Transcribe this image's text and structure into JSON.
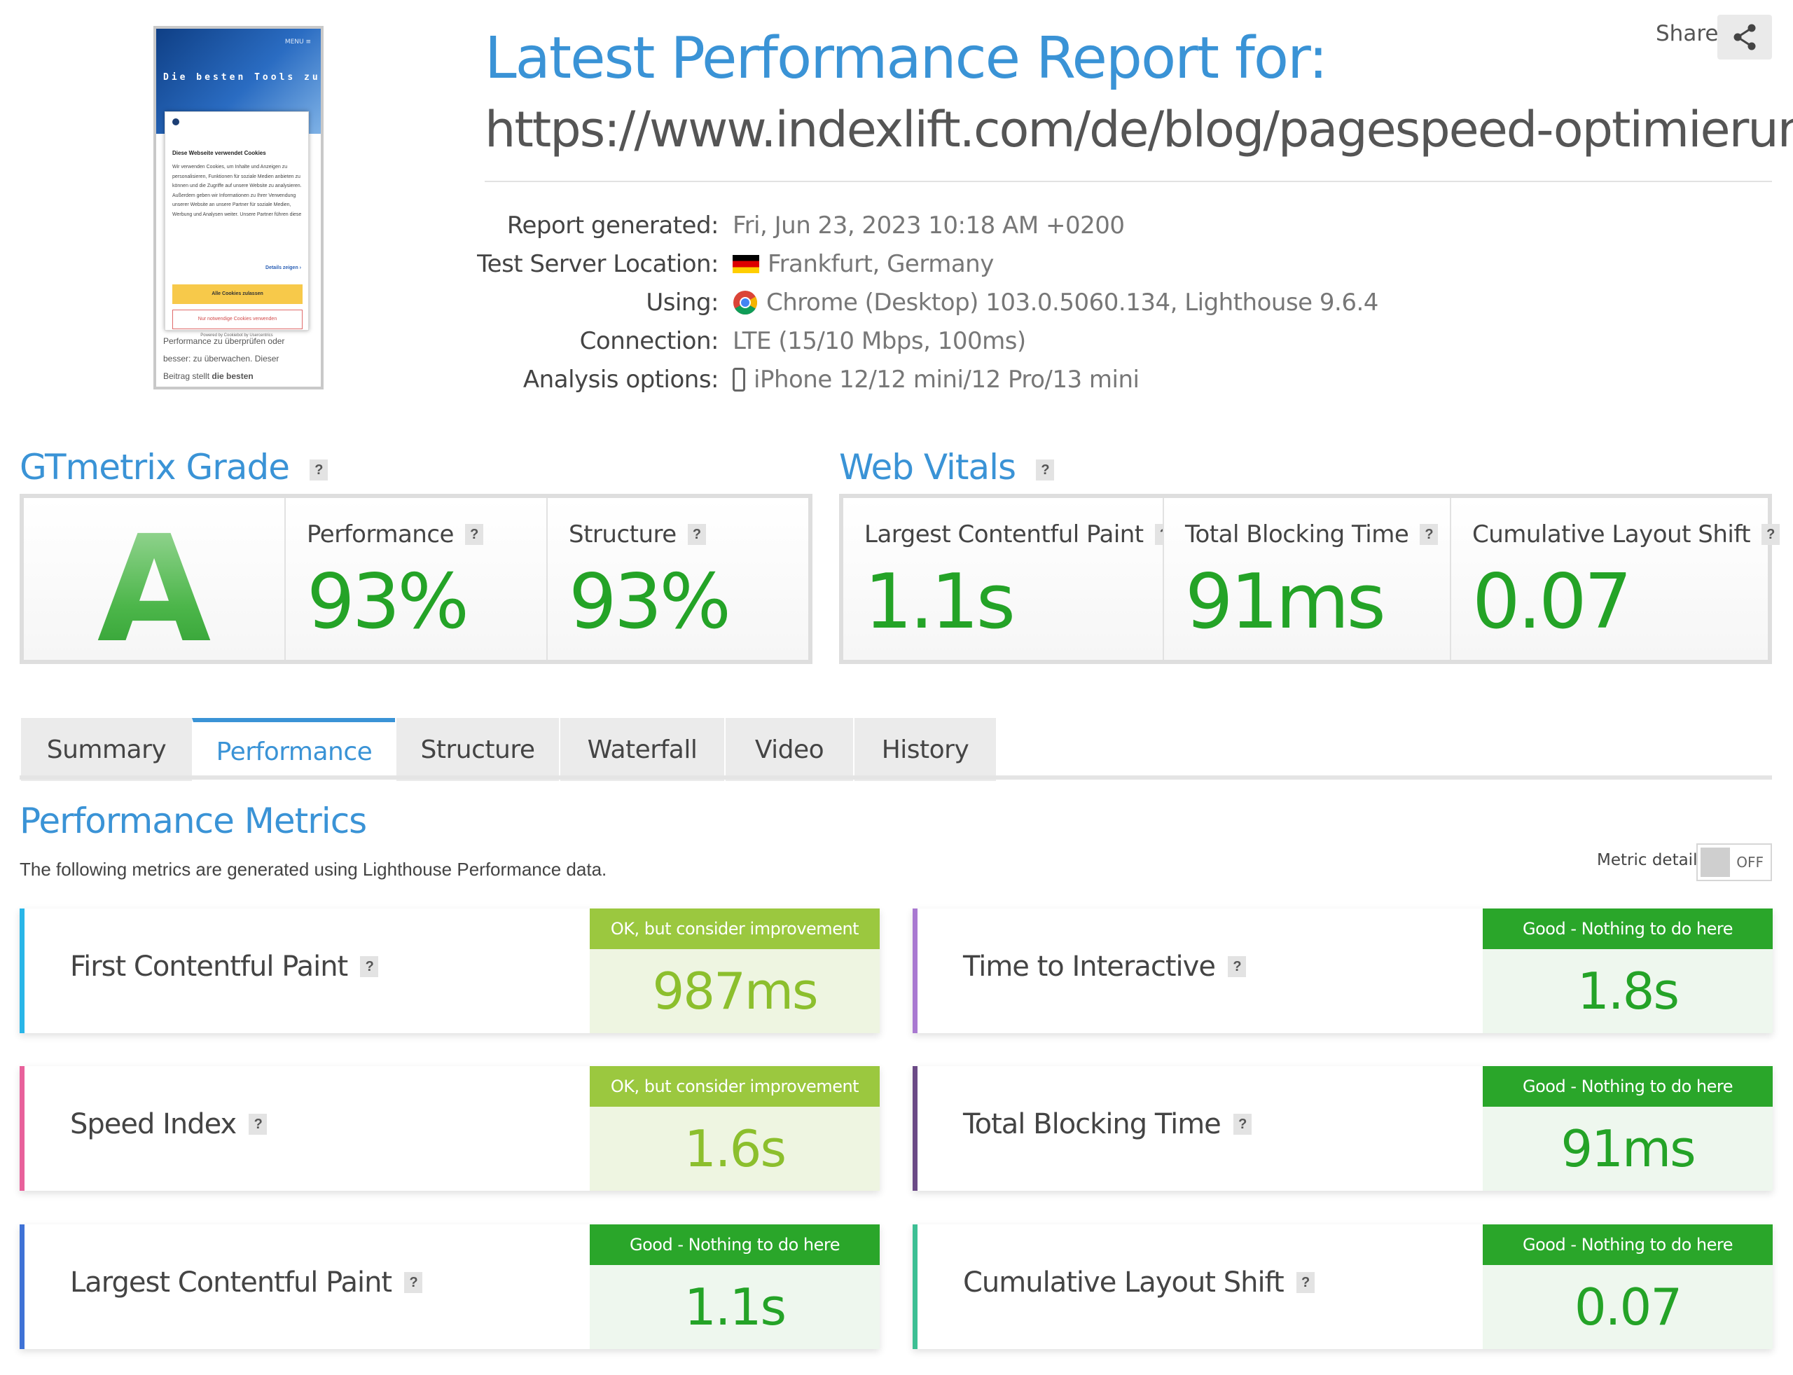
{
  "header": {
    "title": "Latest Performance Report for:",
    "url": "https://www.indexlift.com/de/blog/pagespeed-optimierung",
    "share_label": "Share"
  },
  "screenshot_thumb": {
    "menu": "MENU ≡",
    "headline": "Die besten Tools zur",
    "cookie_title": "Diese Webseite verwendet Cookies",
    "cookie_text": "Wir verwenden Cookies, um Inhalte und Anzeigen zu personalisieren, Funktionen für soziale Medien anbieten zu können und die Zugriffe auf unsere Website zu analysieren. Außerdem geben wir Informationen zu Ihrer Verwendung unserer Website an unsere Partner für soziale Medien, Werbung und Analysen weiter. Unsere Partner führen diese",
    "details": "Details zeigen ›",
    "allow_all": "Alle Cookies zulassen",
    "necessary_only": "Nur notwendige Cookies verwenden",
    "powered_by": "Powered by Cookiebot by Usercentrics",
    "body_text_1": "Performance zu überprüfen oder",
    "body_text_2": "besser: zu überwachen. Dieser",
    "body_text_3": "Beitrag stellt",
    "body_text_bold": "die besten"
  },
  "report_info": {
    "generated_label": "Report generated:",
    "generated_value": "Fri, Jun 23, 2023 10:18 AM +0200",
    "location_label": "Test Server Location:",
    "location_value": "Frankfurt, Germany",
    "using_label": "Using:",
    "using_value": "Chrome (Desktop) 103.0.5060.134, Lighthouse 9.6.4",
    "connection_label": "Connection:",
    "connection_value": "LTE (15/10 Mbps, 100ms)",
    "analysis_label": "Analysis options:",
    "analysis_value": "iPhone 12/12 mini/12 Pro/13 mini"
  },
  "grade": {
    "section_title": "GTmetrix Grade",
    "letter": "A",
    "performance_label": "Performance",
    "performance_value": "93%",
    "structure_label": "Structure",
    "structure_value": "93%"
  },
  "web_vitals": {
    "section_title": "Web Vitals",
    "lcp_label": "Largest Contentful Paint",
    "lcp_value": "1.1s",
    "tbt_label": "Total Blocking Time",
    "tbt_value": "91ms",
    "cls_label": "Cumulative Layout Shift",
    "cls_value": "0.07"
  },
  "tabs": [
    "Summary",
    "Performance",
    "Structure",
    "Waterfall",
    "Video",
    "History"
  ],
  "active_tab": "Performance",
  "performance_metrics": {
    "title": "Performance Metrics",
    "subtitle": "The following metrics are generated using Lighthouse Performance data.",
    "metric_details_label": "Metric details",
    "toggle_state": "OFF",
    "metrics": [
      {
        "label": "First Contentful Paint",
        "badge": "OK, but consider improvement",
        "value": "987ms",
        "rating": "ok",
        "accent": "#29b6e8"
      },
      {
        "label": "Time to Interactive",
        "badge": "Good - Nothing to do here",
        "value": "1.8s",
        "rating": "good",
        "accent": "#a979d1"
      },
      {
        "label": "Speed Index",
        "badge": "OK, but consider improvement",
        "value": "1.6s",
        "rating": "ok",
        "accent": "#e8619b"
      },
      {
        "label": "Total Blocking Time",
        "badge": "Good - Nothing to do here",
        "value": "91ms",
        "rating": "good",
        "accent": "#6b4a86"
      },
      {
        "label": "Largest Contentful Paint",
        "badge": "Good - Nothing to do here",
        "value": "1.1s",
        "rating": "good",
        "accent": "#3f72d6"
      },
      {
        "label": "Cumulative Layout Shift",
        "badge": "Good - Nothing to do here",
        "value": "0.07",
        "rating": "good",
        "accent": "#3dbf94"
      }
    ]
  },
  "colors": {
    "brand_blue": "#3a93d6",
    "good_green": "#2aa62a",
    "ok_green": "#9bc83f"
  },
  "icons": [
    "share-icon",
    "germany-flag-icon",
    "chrome-icon",
    "phone-icon",
    "help-icon"
  ]
}
